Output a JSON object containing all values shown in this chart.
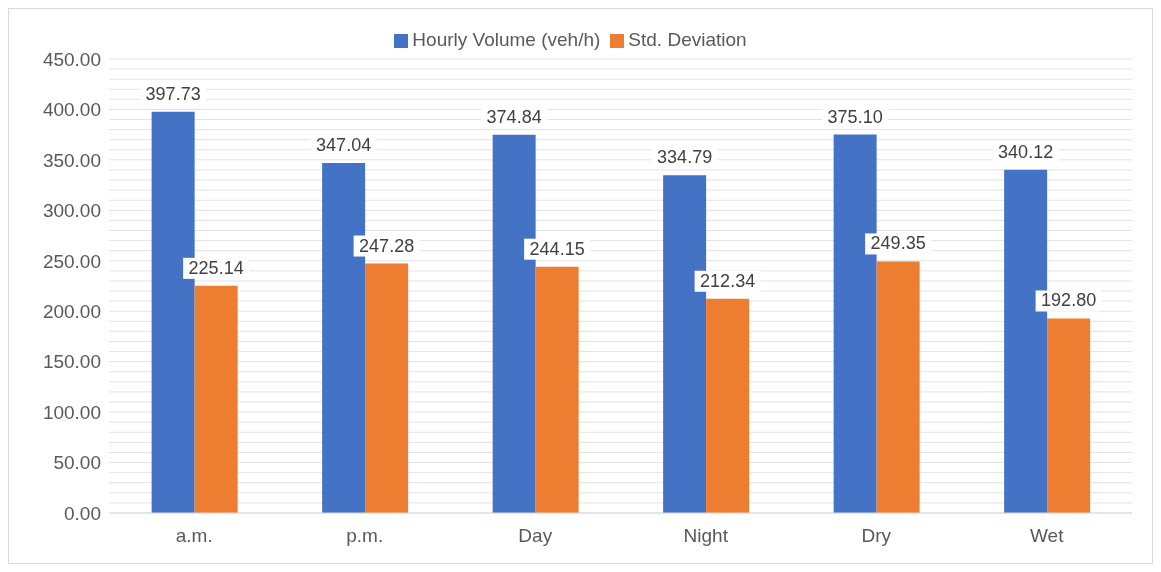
{
  "chart_data": {
    "type": "bar",
    "categories": [
      "a.m.",
      "p.m.",
      "Day",
      "Night",
      "Dry",
      "Wet"
    ],
    "series": [
      {
        "name": "Hourly Volume (veh/h)",
        "color": "#4472c4",
        "values": [
          397.73,
          347.04,
          374.84,
          334.79,
          375.1,
          340.12
        ],
        "value_labels": [
          "397.73",
          "347.04",
          "374.84",
          "334.79",
          "375.10",
          "340.12"
        ]
      },
      {
        "name": "Std. Deviation",
        "color": "#ed7d31",
        "values": [
          225.14,
          247.28,
          244.15,
          212.34,
          249.35,
          192.8
        ],
        "value_labels": [
          "225.14",
          "247.28",
          "244.15",
          "212.34",
          "249.35",
          "192.80"
        ]
      }
    ],
    "ylim": [
      0,
      450
    ],
    "yticks": [
      {
        "value": 0,
        "label": "0.00"
      },
      {
        "value": 10,
        "label": null
      },
      {
        "value": 20,
        "label": null
      },
      {
        "value": 30,
        "label": null
      },
      {
        "value": 40,
        "label": null
      },
      {
        "value": 50,
        "label": "50.00"
      },
      {
        "value": 60,
        "label": null
      },
      {
        "value": 70,
        "label": null
      },
      {
        "value": 80,
        "label": null
      },
      {
        "value": 90,
        "label": null
      },
      {
        "value": 100,
        "label": "100.00"
      },
      {
        "value": 110,
        "label": null
      },
      {
        "value": 120,
        "label": null
      },
      {
        "value": 130,
        "label": null
      },
      {
        "value": 140,
        "label": null
      },
      {
        "value": 150,
        "label": "150.00"
      },
      {
        "value": 160,
        "label": null
      },
      {
        "value": 170,
        "label": null
      },
      {
        "value": 180,
        "label": null
      },
      {
        "value": 190,
        "label": null
      },
      {
        "value": 200,
        "label": "200.00"
      },
      {
        "value": 210,
        "label": null
      },
      {
        "value": 220,
        "label": null
      },
      {
        "value": 230,
        "label": null
      },
      {
        "value": 240,
        "label": null
      },
      {
        "value": 250,
        "label": "250.00"
      },
      {
        "value": 260,
        "label": null
      },
      {
        "value": 270,
        "label": null
      },
      {
        "value": 280,
        "label": null
      },
      {
        "value": 290,
        "label": null
      },
      {
        "value": 300,
        "label": "300.00"
      },
      {
        "value": 310,
        "label": null
      },
      {
        "value": 320,
        "label": null
      },
      {
        "value": 330,
        "label": null
      },
      {
        "value": 340,
        "label": null
      },
      {
        "value": 350,
        "label": "350.00"
      },
      {
        "value": 360,
        "label": null
      },
      {
        "value": 370,
        "label": null
      },
      {
        "value": 380,
        "label": null
      },
      {
        "value": 390,
        "label": null
      },
      {
        "value": 400,
        "label": "400.00"
      },
      {
        "value": 410,
        "label": null
      },
      {
        "value": 420,
        "label": null
      },
      {
        "value": 430,
        "label": null
      },
      {
        "value": 440,
        "label": null
      },
      {
        "value": 450,
        "label": "450.00"
      }
    ],
    "grid": "y",
    "legend": "top"
  }
}
